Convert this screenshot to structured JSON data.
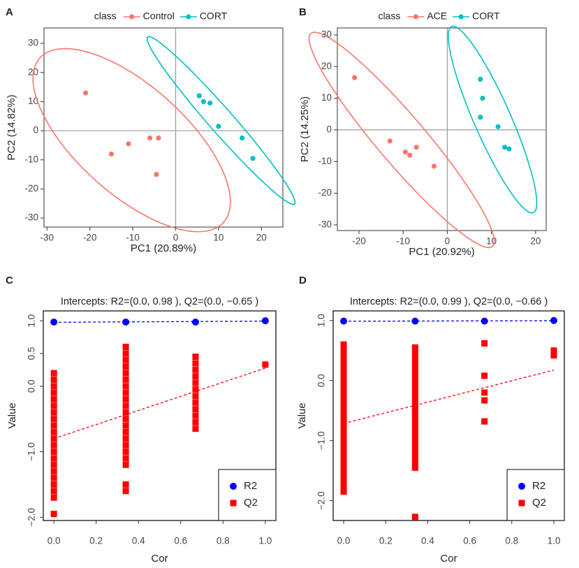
{
  "chart_data": [
    {
      "type": "scatter",
      "label": "A",
      "legend_title": "class",
      "legend": "top",
      "ellipse": true,
      "zero_lines": true,
      "xlabel": "PC1 (20.89%)",
      "ylabel": "PC2 (14.82%)",
      "xlim": [
        -30.7,
        25
      ],
      "ylim": [
        -33.1,
        35.3
      ],
      "xticks": [
        -30,
        -20,
        -10,
        0,
        10,
        20
      ],
      "yticks": [
        -30,
        -20,
        -10,
        0,
        10,
        20,
        30
      ],
      "series": [
        {
          "name": "Control",
          "color": "#F8766D",
          "marker": "circle",
          "x": [
            -21,
            -15,
            -11,
            -6,
            -4,
            -4.5
          ],
          "values": [
            13,
            -8,
            -4.5,
            -2.5,
            -2.5,
            -15
          ]
        },
        {
          "name": "CORT",
          "color": "#00BFC4",
          "marker": "circle",
          "x": [
            5.5,
            6.5,
            8,
            10,
            15.5,
            18
          ],
          "values": [
            12,
            10,
            9.5,
            1.5,
            -2.5,
            -9.5
          ]
        }
      ]
    },
    {
      "type": "scatter",
      "label": "B",
      "legend_title": "class",
      "legend": "top",
      "ellipse": true,
      "zero_lines": true,
      "xlabel": "PC1 (20.92%)",
      "ylabel": "PC2 (14.25%)",
      "xlim": [
        -24.9,
        22.4
      ],
      "ylim": [
        -31.8,
        32.2
      ],
      "xticks": [
        -20,
        -10,
        0,
        10,
        20
      ],
      "yticks": [
        -30,
        -20,
        -10,
        0,
        10,
        20,
        30
      ],
      "series": [
        {
          "name": "ACE",
          "color": "#F8766D",
          "marker": "circle",
          "x": [
            -21,
            -13,
            -9.5,
            -8.5,
            -7,
            -3
          ],
          "values": [
            16.5,
            -3.5,
            -7,
            -8,
            -5.5,
            -11.5
          ]
        },
        {
          "name": "CORT",
          "color": "#00BFC4",
          "marker": "circle",
          "x": [
            7.5,
            8,
            7.5,
            11.5,
            13,
            14
          ],
          "values": [
            16,
            10,
            4,
            1,
            -5.5,
            -6
          ]
        }
      ]
    },
    {
      "type": "scatter",
      "label": "C",
      "title": "Intercepts: R2=(0.0, 0.98 ), Q2=(0.0, −0.65 )",
      "legend": "bottom-right",
      "fit_lines": true,
      "ytick_rotation": 90,
      "xlabel": "Cor",
      "ylabel": "Value",
      "xlim": [
        -0.05,
        1.05
      ],
      "ylim": [
        -2.05,
        1.15
      ],
      "xticks": [
        {
          "value": 0,
          "label": "0.0"
        },
        0.2,
        0.4,
        0.6,
        0.8,
        {
          "value": 1,
          "label": "1.0"
        }
      ],
      "yticks": [
        {
          "value": -2,
          "label": "−2.0"
        },
        {
          "value": -1,
          "label": "−1.0"
        },
        {
          "value": 0,
          "label": "0.0"
        },
        0.5,
        {
          "value": 1,
          "label": "1.0"
        }
      ],
      "series": [
        {
          "name": "R2",
          "color": "#0000FF",
          "marker": "circle",
          "x": [
            0,
            0.34,
            0.67,
            1
          ],
          "values": [
            0.98,
            0.98,
            0.98,
            1.0
          ]
        },
        {
          "name": "Q2",
          "color": "#FF0000",
          "marker": "square",
          "x": [
            0,
            0,
            0,
            0,
            0,
            0,
            0,
            0,
            0,
            0,
            0,
            0,
            0,
            0,
            0,
            0,
            0,
            0,
            0,
            0,
            0,
            0.34,
            0.34,
            0.34,
            0.34,
            0.34,
            0.34,
            0.34,
            0.34,
            0.34,
            0.34,
            0.34,
            0.34,
            0.34,
            0.34,
            0.34,
            0.34,
            0.34,
            0.34,
            0.34,
            0.34,
            0.34,
            0.67,
            0.67,
            0.67,
            0.67,
            0.67,
            0.67,
            0.67,
            0.67,
            0.67,
            0.67,
            0.67,
            0.67,
            1
          ],
          "values": [
            0.2,
            0.1,
            0.0,
            -0.1,
            -0.2,
            -0.3,
            -0.4,
            -0.5,
            -0.6,
            -0.7,
            -0.8,
            -0.9,
            -1.0,
            -1.1,
            -1.2,
            -1.3,
            -1.4,
            -1.5,
            -1.6,
            -1.7,
            -1.95,
            0.6,
            0.5,
            0.4,
            0.3,
            0.2,
            0.1,
            0.0,
            -0.1,
            -0.2,
            -0.3,
            -0.4,
            -0.5,
            -0.6,
            -0.7,
            -0.8,
            -0.9,
            -1.0,
            -1.1,
            -1.2,
            -1.5,
            -1.6,
            0.45,
            0.35,
            0.25,
            0.15,
            0.05,
            -0.05,
            -0.15,
            -0.25,
            -0.35,
            -0.45,
            -0.55,
            -0.65,
            0.33
          ]
        }
      ]
    },
    {
      "type": "scatter",
      "label": "D",
      "title": "Intercepts: R2=(0.0, 0.99 ), Q2=(0.0, −0.66 )",
      "legend": "bottom-right",
      "fit_lines": true,
      "ytick_rotation": 90,
      "xlabel": "Cor",
      "ylabel": "Value",
      "xlim": [
        -0.05,
        1.05
      ],
      "ylim": [
        -2.33,
        1.16
      ],
      "xticks": [
        {
          "value": 0,
          "label": "0.0"
        },
        0.2,
        0.4,
        0.6,
        0.8,
        {
          "value": 1,
          "label": "1.0"
        }
      ],
      "yticks": [
        {
          "value": -2,
          "label": "−2.0"
        },
        {
          "value": -1,
          "label": "−1.0"
        },
        {
          "value": 0,
          "label": "0.0"
        },
        {
          "value": 1,
          "label": "1.0"
        }
      ],
      "series": [
        {
          "name": "R2",
          "color": "#0000FF",
          "marker": "circle",
          "x": [
            0,
            0.34,
            0.67,
            1
          ],
          "values": [
            0.99,
            0.99,
            0.99,
            1.0
          ]
        },
        {
          "name": "Q2",
          "color": "#FF0000",
          "marker": "square",
          "x": [
            0,
            0,
            0,
            0,
            0,
            0,
            0,
            0,
            0,
            0,
            0,
            0,
            0,
            0,
            0,
            0,
            0,
            0,
            0,
            0,
            0,
            0,
            0,
            0,
            0,
            0,
            0.34,
            0.34,
            0.34,
            0.34,
            0.34,
            0.34,
            0.34,
            0.34,
            0.34,
            0.34,
            0.34,
            0.34,
            0.34,
            0.34,
            0.34,
            0.34,
            0.34,
            0.34,
            0.34,
            0.34,
            0.34,
            0.34,
            0.67,
            0.67,
            0.67,
            0.67,
            0.67,
            1,
            1,
            1
          ],
          "values": [
            0.6,
            0.5,
            0.4,
            0.3,
            0.2,
            0.1,
            0.0,
            -0.1,
            -0.2,
            -0.3,
            -0.4,
            -0.5,
            -0.6,
            -0.7,
            -0.8,
            -0.9,
            -1.0,
            -1.1,
            -1.2,
            -1.3,
            -1.4,
            -1.5,
            -1.6,
            -1.7,
            -1.8,
            -1.85,
            0.55,
            0.45,
            0.35,
            0.25,
            0.15,
            0.05,
            -0.05,
            -0.15,
            -0.25,
            -0.35,
            -0.45,
            -0.55,
            -0.65,
            -0.75,
            -0.85,
            -0.95,
            -1.05,
            -1.15,
            -1.25,
            -1.35,
            -1.45,
            -2.27,
            0.62,
            0.08,
            -0.2,
            -0.33,
            -0.68,
            0.5,
            0.45,
            0.42
          ]
        }
      ]
    }
  ]
}
